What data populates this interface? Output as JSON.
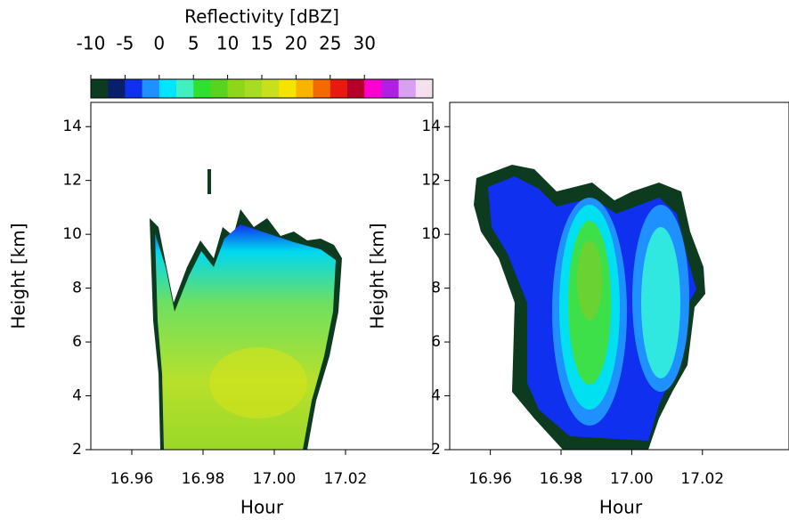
{
  "chart_data": [
    {
      "type": "heatmap",
      "xlabel": "Hour",
      "ylabel": "Height [km]",
      "xlim": [
        16.9485,
        17.0445
      ],
      "xticks": [
        16.96,
        16.98,
        {
          "value": 17.0,
          "label": "17.00"
        },
        17.02
      ],
      "ylim": [
        2,
        14.9
      ],
      "yticks": [
        2,
        4,
        6,
        8,
        10,
        12,
        14
      ]
    },
    {
      "type": "heatmap",
      "xlabel": "Hour",
      "ylabel": "Height [km]",
      "xlim": [
        16.9485,
        17.0445
      ],
      "xticks": [
        16.96,
        16.98,
        {
          "value": 17.0,
          "label": "17.00"
        },
        17.02
      ],
      "ylim": [
        2,
        14.9
      ],
      "yticks": [
        2,
        4,
        6,
        8,
        10,
        12,
        14
      ]
    }
  ],
  "colorbar": {
    "label": "Reflectivity [dBZ]",
    "lim": [
      -10,
      40
    ],
    "ticks": [
      -10,
      -5,
      0,
      5,
      10,
      15,
      20,
      25,
      30
    ],
    "colors": [
      "#0c3b20",
      "#07206b",
      "#1030f0",
      "#1e90ff",
      "#00e5ff",
      "#40f0c0",
      "#2fe02f",
      "#58d420",
      "#8ed61a",
      "#a8dc22",
      "#c8e01c",
      "#f5e400",
      "#f7b500",
      "#f26a00",
      "#e8190f",
      "#b5002a",
      "#ff00d0",
      "#b020e0",
      "#d8a0f0",
      "#f5e0f0"
    ]
  }
}
